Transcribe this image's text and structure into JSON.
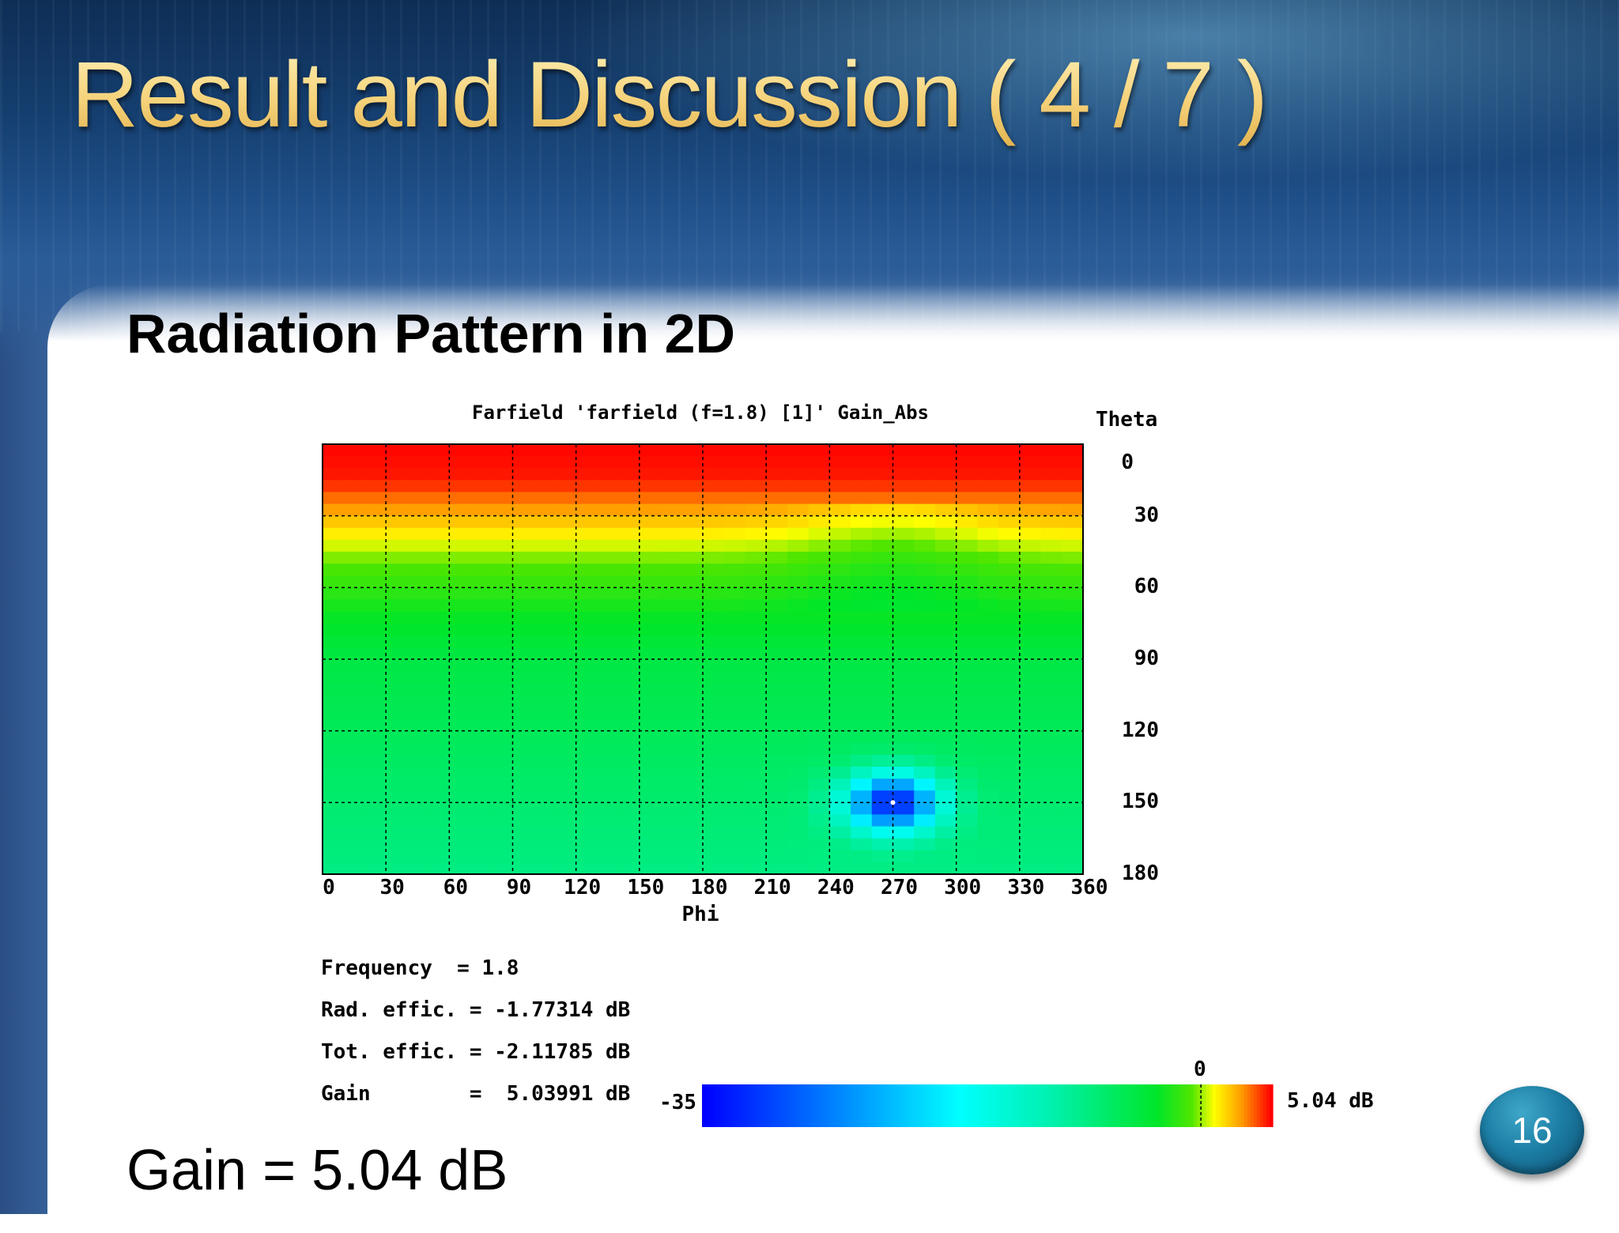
{
  "slide": {
    "title": "Result and Discussion ( 4 / 7 )",
    "subtitle": "Radiation Pattern in 2D",
    "footer_text": "Gain = 5.04 dB",
    "page_number": "16"
  },
  "chart_data": {
    "type": "heatmap",
    "title": "Farfield 'farfield (f=1.8) [1]' Gain_Abs",
    "xlabel": "Phi",
    "ylabel": "Theta",
    "x_ticks": [
      "0",
      "30",
      "60",
      "90",
      "120",
      "150",
      "180",
      "210",
      "240",
      "270",
      "300",
      "330",
      "360"
    ],
    "y_ticks": [
      "0",
      "30",
      "60",
      "90",
      "120",
      "150",
      "180"
    ],
    "xlim": [
      0,
      360
    ],
    "ylim": [
      0,
      180
    ],
    "grid": true,
    "colorbar": {
      "min_label": "-35",
      "zero_label": "0",
      "max_label": "5.04 dB",
      "min": -35,
      "max": 5.04
    },
    "null_point": {
      "phi": 270,
      "theta": 150
    },
    "info": [
      "Frequency  = 1.8",
      "Rad. effic. = -1.77314 dB",
      "Tot. effic. = -2.11785 dB",
      "Gain        =  5.03991 dB"
    ]
  }
}
